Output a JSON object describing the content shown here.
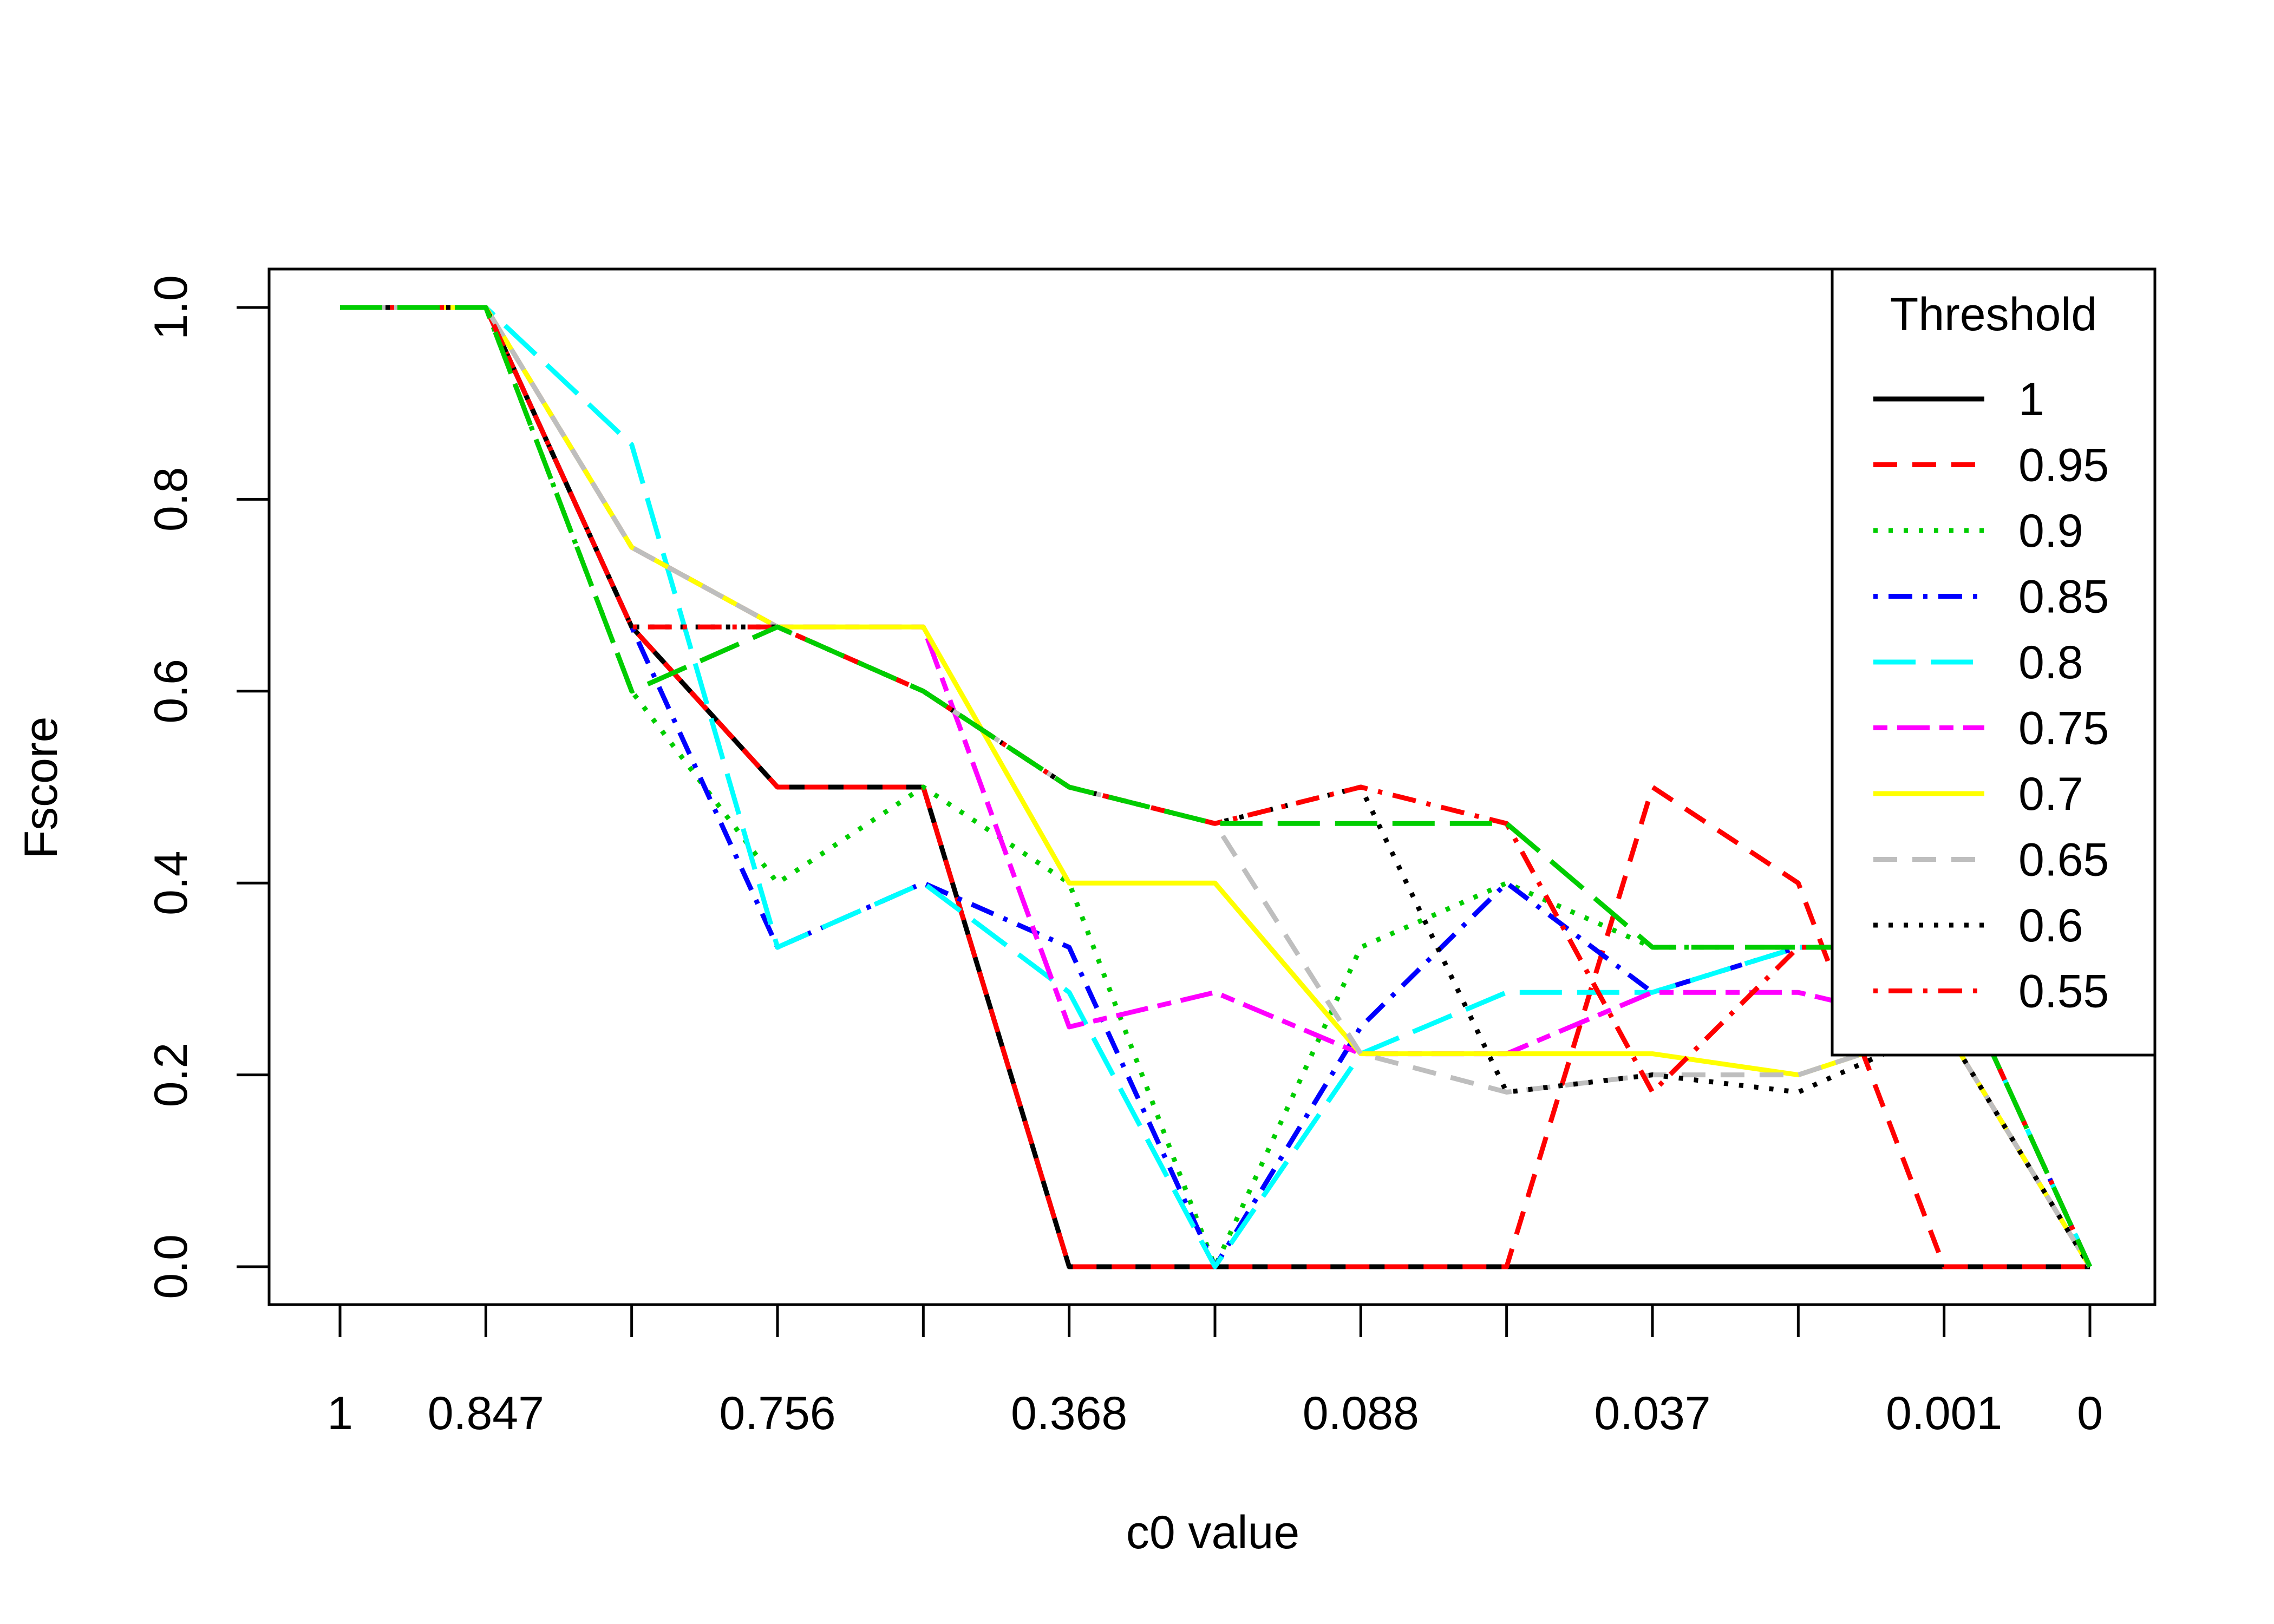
{
  "chart_data": {
    "type": "line",
    "xlabel": "c0 value",
    "ylabel": "Fscore",
    "x_positions": [
      1,
      2,
      3,
      4,
      5,
      6,
      7,
      8,
      9,
      10,
      11,
      12,
      13
    ],
    "x_tick_labels": [
      "1",
      "0.847",
      "",
      "0.756",
      "",
      "0.368",
      "",
      "0.088",
      "",
      "0.037",
      "",
      "0.001",
      "0"
    ],
    "ylim": [
      0,
      1
    ],
    "y_ticks": [
      0,
      0.2,
      0.4,
      0.6,
      0.8,
      1
    ],
    "y_tick_labels": [
      "0.0",
      "0.2",
      "0.4",
      "0.6",
      "0.8",
      "1.0"
    ],
    "grid": false,
    "legend": {
      "title": "Threshold",
      "placement": "top-right"
    },
    "series": [
      {
        "name": "1",
        "color": "#000000",
        "dash": "solid",
        "values": [
          1,
          1,
          0.667,
          0.5,
          0.5,
          0,
          0,
          0,
          0,
          0,
          0,
          0,
          0
        ]
      },
      {
        "name": "0.95",
        "color": "#ff0000",
        "dash": "dashed",
        "values": [
          1,
          1,
          0.667,
          0.5,
          0.5,
          0,
          0,
          0,
          0,
          0.5,
          0.4,
          0,
          0
        ]
      },
      {
        "name": "0.9",
        "color": "#00cd00",
        "dash": "dotted",
        "values": [
          1,
          1,
          0.6,
          0.4,
          0.5,
          0.4,
          0,
          0.333,
          0.4,
          0.333,
          0.333,
          0.333,
          0
        ]
      },
      {
        "name": "0.85",
        "color": "#0000ff",
        "dash": "dotdash",
        "values": [
          1,
          1,
          0.667,
          0.333,
          0.4,
          0.333,
          0,
          0.25,
          0.4,
          0.286,
          0.333,
          0.333,
          0
        ]
      },
      {
        "name": "0.8",
        "color": "#00ffff",
        "dash": "longdash",
        "values": [
          1,
          1,
          0.857,
          0.333,
          0.4,
          0.286,
          0,
          0.222,
          0.286,
          0.286,
          0.333,
          0.333,
          0
        ]
      },
      {
        "name": "0.75",
        "color": "#ff00ff",
        "dash": "twodash",
        "values": [
          1,
          1,
          0.75,
          0.667,
          0.667,
          0.25,
          0.286,
          0.222,
          0.222,
          0.286,
          0.286,
          0.25,
          0
        ]
      },
      {
        "name": "0.7",
        "color": "#ffff00",
        "dash": "solid",
        "values": [
          1,
          1,
          0.75,
          0.667,
          0.667,
          0.4,
          0.4,
          0.222,
          0.222,
          0.222,
          0.2,
          0.25,
          0
        ]
      },
      {
        "name": "0.65",
        "color": "#bebebe",
        "dash": "dashed",
        "values": [
          1,
          1,
          0.75,
          0.667,
          0.6,
          0.5,
          0.462,
          0.222,
          0.182,
          0.2,
          0.2,
          0.25,
          0
        ]
      },
      {
        "name": "0.6",
        "color": "#000000",
        "dash": "dotted",
        "values": [
          1,
          1,
          0.667,
          0.667,
          0.6,
          0.5,
          0.462,
          0.5,
          0.182,
          0.2,
          0.182,
          0.25,
          0
        ]
      },
      {
        "name": "0.55",
        "color": "#ff0000",
        "dash": "dotdash",
        "values": [
          1,
          1,
          0.667,
          0.667,
          0.6,
          0.5,
          0.462,
          0.5,
          0.462,
          0.182,
          0.333,
          0.333,
          0
        ]
      },
      {
        "name": "",
        "color": "#00cd00",
        "dash": "longdash",
        "in_legend": false,
        "values": [
          1,
          1,
          0.6,
          0.667,
          0.6,
          0.5,
          0.462,
          0.462,
          0.462,
          0.333,
          0.333,
          0.333,
          0
        ]
      }
    ]
  }
}
